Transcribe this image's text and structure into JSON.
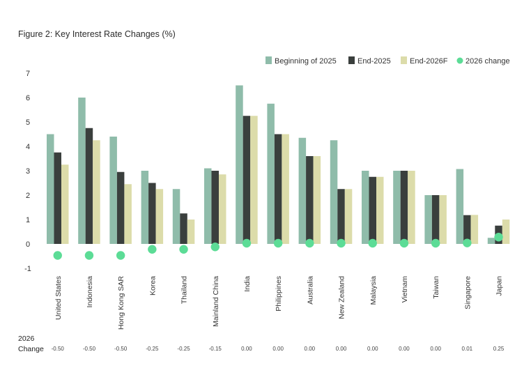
{
  "chart_data": {
    "type": "bar",
    "title": "Figure 2: Key Interest Rate Changes (%)",
    "categories": [
      "United States",
      "Indonesia",
      "Hong Kong SAR",
      "Korea",
      "Thailand",
      "Mainland China",
      "India",
      "Philippines",
      "Australia",
      "New Zealand",
      "Malaysia",
      "Vietnam",
      "Taiwan",
      "Singapore",
      "Japan"
    ],
    "series": [
      {
        "name": "Beginning of 2025",
        "color": "#8fbcaa",
        "values": [
          4.5,
          6.0,
          4.4,
          3.0,
          2.25,
          3.1,
          6.5,
          5.75,
          4.35,
          4.25,
          3.0,
          3.0,
          2.0,
          3.07,
          0.25
        ]
      },
      {
        "name": "End-2025",
        "color": "#3a3f3d",
        "values": [
          3.75,
          4.75,
          2.95,
          2.5,
          1.25,
          3.0,
          5.25,
          4.5,
          3.6,
          2.25,
          2.75,
          3.0,
          2.0,
          1.18,
          0.75
        ]
      },
      {
        "name": "End-2026F",
        "color": "#dcdcaa",
        "values": [
          3.25,
          4.25,
          2.45,
          2.25,
          1.0,
          2.85,
          5.25,
          4.5,
          3.6,
          2.25,
          2.75,
          3.0,
          2.0,
          1.19,
          1.0
        ]
      },
      {
        "name": "2026 change",
        "color": "#5cdc96",
        "type": "scatter",
        "values": [
          -0.5,
          -0.5,
          -0.5,
          -0.25,
          -0.25,
          -0.15,
          0.0,
          0.0,
          0.0,
          0.0,
          0.0,
          0.0,
          0.0,
          0.01,
          0.25
        ]
      }
    ],
    "ylim": [
      -1,
      7
    ],
    "yticks": [
      "-1",
      "0",
      "1",
      "2",
      "3",
      "4",
      "5",
      "6",
      "7"
    ],
    "legend_position": "top-right",
    "grid": false
  },
  "change_row": {
    "label_line1": "2026",
    "label_line2": "Change",
    "values": [
      "-0.50",
      "-0.50",
      "-0.50",
      "-0.25",
      "-0.25",
      "-0.15",
      "0.00",
      "0.00",
      "0.00",
      "0.00",
      "0.00",
      "0.00",
      "0.00",
      "0.01",
      "0.25"
    ]
  }
}
